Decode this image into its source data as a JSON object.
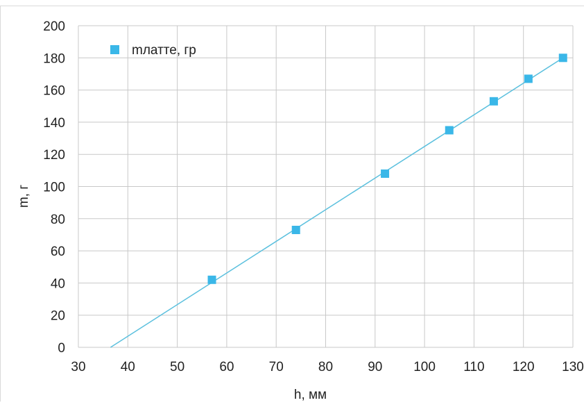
{
  "chart_data": {
    "type": "scatter",
    "title": "",
    "xlabel": "h, мм",
    "ylabel": "m, г",
    "xlim": [
      30,
      130
    ],
    "ylim": [
      0,
      200
    ],
    "xticks": [
      30,
      40,
      50,
      60,
      70,
      80,
      90,
      100,
      110,
      120,
      130
    ],
    "yticks": [
      0,
      20,
      40,
      60,
      80,
      100,
      120,
      140,
      160,
      180,
      200
    ],
    "grid": true,
    "legend_position": "top-left",
    "series": [
      {
        "name": "mлатте, гр",
        "color": "#3ab7e8",
        "marker": "square",
        "points": [
          {
            "x": 57,
            "y": 42
          },
          {
            "x": 74,
            "y": 73
          },
          {
            "x": 92,
            "y": 108
          },
          {
            "x": 105,
            "y": 135
          },
          {
            "x": 114,
            "y": 153
          },
          {
            "x": 121,
            "y": 167
          },
          {
            "x": 128,
            "y": 180
          }
        ]
      }
    ],
    "trendline": {
      "type": "linear",
      "color": "#5bc0de",
      "x_start": 36.5,
      "x_end": 128,
      "y_start": 0,
      "y_end": 180
    }
  }
}
